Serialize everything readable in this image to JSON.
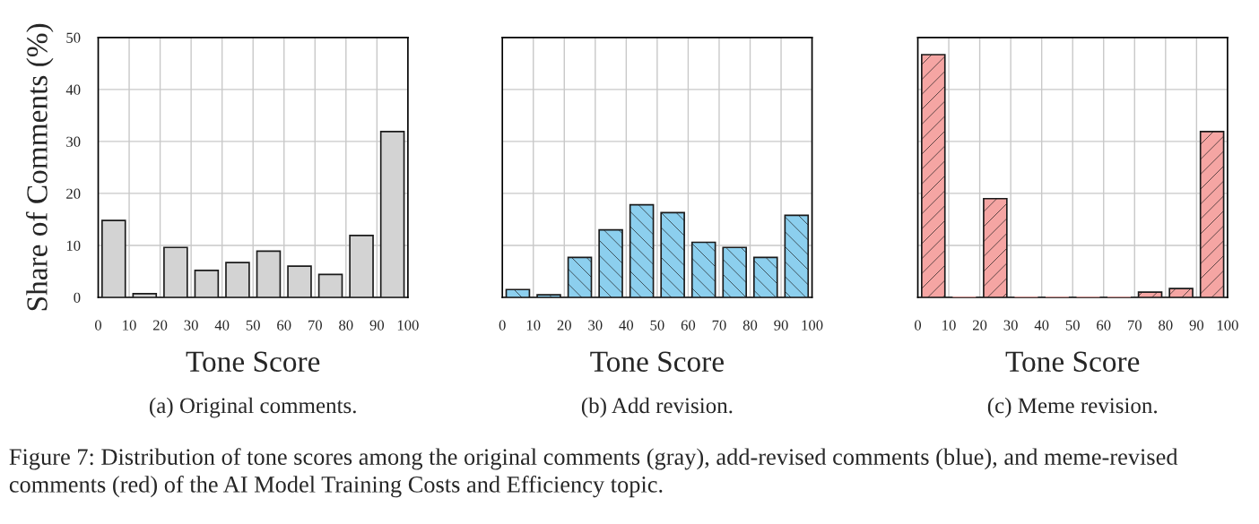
{
  "chart_data": [
    {
      "type": "histogram",
      "title": "(a) Original comments.",
      "xlabel": "Tone Score",
      "ylabel": "Share of Comments (%)",
      "bins": [
        0,
        10,
        20,
        30,
        40,
        50,
        60,
        70,
        80,
        90,
        100
      ],
      "values": [
        14.8,
        0.7,
        9.6,
        5.2,
        6.7,
        8.9,
        6.0,
        4.4,
        11.9,
        31.9
      ],
      "color": "#d3d3d3",
      "xlim": [
        0,
        100
      ],
      "xticks": [
        0,
        10,
        20,
        30,
        40,
        50,
        60,
        70,
        80,
        90,
        100
      ],
      "ylim": [
        0,
        50
      ],
      "yticks": [
        0,
        10,
        20,
        30,
        40,
        50
      ],
      "grid": true
    },
    {
      "type": "histogram",
      "title": "(b) Add revision.",
      "xlabel": "Tone Score",
      "bins": [
        0,
        10,
        20,
        30,
        40,
        50,
        60,
        70,
        80,
        90,
        100
      ],
      "values": [
        1.5,
        0.5,
        7.7,
        13.0,
        17.8,
        16.3,
        10.6,
        9.6,
        7.7,
        15.8
      ],
      "color": "#8ccfee",
      "xlim": [
        0,
        100
      ],
      "xticks": [
        0,
        10,
        20,
        30,
        40,
        50,
        60,
        70,
        80,
        90,
        100
      ],
      "ylim": [
        0,
        50
      ],
      "yticks": [
        0,
        10,
        20,
        30,
        40,
        50
      ],
      "grid": true,
      "tick_labels": "x"
    },
    {
      "type": "histogram",
      "title": "(c) Meme revision.",
      "xlabel": "Tone Score",
      "bins": [
        0,
        10,
        20,
        30,
        40,
        50,
        60,
        70,
        80,
        90,
        100
      ],
      "values": [
        46.7,
        0,
        19.0,
        0,
        0,
        0,
        0,
        1.0,
        1.7,
        31.9
      ],
      "color": "#f5a5a3",
      "xlim": [
        0,
        100
      ],
      "xticks": [
        0,
        10,
        20,
        30,
        40,
        50,
        60,
        70,
        80,
        90,
        100
      ],
      "ylim": [
        0,
        50
      ],
      "yticks": [
        0,
        10,
        20,
        30,
        40,
        50
      ],
      "grid": true,
      "tick_labels": "x",
      "annotations": [
        "Figure 7: Distribution of tone scores among the original comments (gray), add-revised comments (blue), and meme-revised comments (red) of the AI Model Training Costs and Efficiency topic."
      ]
    }
  ]
}
